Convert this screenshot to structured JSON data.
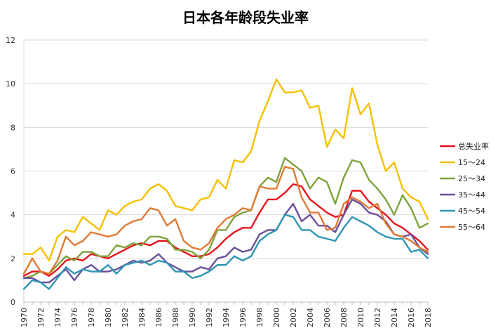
{
  "chart_data": {
    "type": "line",
    "title": "日本各年龄段失业率",
    "xlabel": "",
    "ylabel": "",
    "ylim": [
      0,
      12
    ],
    "yticks": [
      0,
      2,
      4,
      6,
      8,
      10,
      12
    ],
    "xlim": [
      1970,
      2018
    ],
    "xticks": [
      1970,
      1972,
      1974,
      1976,
      1978,
      1980,
      1982,
      1984,
      1986,
      1988,
      1990,
      1992,
      1994,
      1996,
      1998,
      2000,
      2002,
      2004,
      2006,
      2008,
      2010,
      2012,
      2014,
      2016,
      2018
    ],
    "grid": "horizontal",
    "legend_position": "right",
    "x": [
      1970,
      1971,
      1972,
      1973,
      1974,
      1975,
      1976,
      1977,
      1978,
      1979,
      1980,
      1981,
      1982,
      1983,
      1984,
      1985,
      1986,
      1987,
      1988,
      1989,
      1990,
      1991,
      1992,
      1993,
      1994,
      1995,
      1996,
      1997,
      1998,
      1999,
      2000,
      2001,
      2002,
      2003,
      2004,
      2005,
      2006,
      2007,
      2008,
      2009,
      2010,
      2011,
      2012,
      2013,
      2014,
      2015,
      2016,
      2017,
      2018
    ],
    "series": [
      {
        "name": "总失业率",
        "color": "#e8141c",
        "values": [
          1.2,
          1.4,
          1.4,
          1.2,
          1.5,
          1.9,
          2.0,
          1.9,
          2.2,
          2.1,
          2.0,
          2.2,
          2.4,
          2.6,
          2.7,
          2.6,
          2.8,
          2.8,
          2.5,
          2.3,
          2.1,
          2.1,
          2.2,
          2.5,
          2.9,
          3.2,
          3.4,
          3.4,
          4.1,
          4.7,
          4.7,
          5.0,
          5.4,
          5.3,
          4.7,
          4.4,
          4.1,
          3.9,
          4.0,
          5.1,
          5.1,
          4.6,
          4.3,
          4.0,
          3.6,
          3.4,
          3.1,
          2.8,
          2.4
        ]
      },
      {
        "name": "15～24",
        "color": "#f5c000",
        "values": [
          2.2,
          2.2,
          2.5,
          1.9,
          3.0,
          3.3,
          3.2,
          3.9,
          3.6,
          3.3,
          4.2,
          4.0,
          4.4,
          4.6,
          4.7,
          5.2,
          5.4,
          5.1,
          4.4,
          4.3,
          4.2,
          4.7,
          4.8,
          5.6,
          5.2,
          6.5,
          6.4,
          6.9,
          8.3,
          9.2,
          10.2,
          9.6,
          9.6,
          9.7,
          8.9,
          9.0,
          7.1,
          7.9,
          7.5,
          9.8,
          8.6,
          9.1,
          7.2,
          6.0,
          6.4,
          5.2,
          4.8,
          4.6,
          3.8
        ]
      },
      {
        "name": "25～34",
        "color": "#7da33a",
        "values": [
          1.1,
          1.2,
          1.4,
          1.3,
          1.7,
          2.1,
          1.9,
          2.3,
          2.3,
          2.1,
          2.1,
          2.6,
          2.5,
          2.7,
          2.6,
          3.0,
          3.0,
          2.9,
          2.4,
          2.4,
          2.3,
          2.0,
          2.4,
          3.3,
          3.3,
          3.9,
          4.1,
          4.2,
          5.3,
          5.7,
          5.5,
          6.6,
          6.3,
          6.0,
          5.2,
          5.7,
          5.5,
          4.5,
          5.7,
          6.5,
          6.4,
          5.6,
          5.2,
          4.7,
          4.0,
          4.9,
          4.3,
          3.4,
          3.6
        ]
      },
      {
        "name": "35～44",
        "color": "#6a4e9c",
        "values": [
          1.1,
          1.1,
          0.9,
          0.9,
          1.2,
          1.5,
          1.0,
          1.5,
          1.7,
          1.4,
          1.4,
          1.5,
          1.7,
          1.9,
          1.8,
          1.9,
          2.2,
          1.8,
          1.6,
          1.4,
          1.4,
          1.6,
          1.5,
          2.0,
          2.1,
          2.5,
          2.3,
          2.4,
          3.1,
          3.3,
          3.3,
          4.0,
          4.5,
          3.7,
          4.0,
          3.5,
          3.5,
          3.2,
          4.0,
          4.7,
          4.5,
          4.1,
          4.0,
          3.7,
          3.1,
          3.0,
          3.1,
          2.5,
          2.2
        ]
      },
      {
        "name": "45～54",
        "color": "#2e95b5",
        "values": [
          0.6,
          1.0,
          0.9,
          0.6,
          1.1,
          1.6,
          1.3,
          1.5,
          1.4,
          1.4,
          1.7,
          1.3,
          1.7,
          1.8,
          1.9,
          1.7,
          1.9,
          1.8,
          1.4,
          1.4,
          1.1,
          1.2,
          1.4,
          1.7,
          1.7,
          2.1,
          1.9,
          2.1,
          2.8,
          3.1,
          3.3,
          4.0,
          3.9,
          3.3,
          3.3,
          3.0,
          2.9,
          2.8,
          3.4,
          3.9,
          3.7,
          3.5,
          3.2,
          3.0,
          2.9,
          2.9,
          2.3,
          2.4,
          2.0
        ]
      },
      {
        "name": "55～64",
        "color": "#e07a33",
        "values": [
          1.3,
          2.0,
          1.4,
          1.3,
          1.9,
          3.0,
          2.6,
          2.8,
          3.2,
          3.1,
          3.0,
          3.1,
          3.5,
          3.7,
          3.8,
          4.3,
          4.2,
          3.5,
          3.8,
          2.8,
          2.5,
          2.4,
          2.7,
          3.4,
          3.8,
          4.0,
          4.3,
          4.2,
          5.3,
          5.2,
          5.2,
          6.2,
          6.1,
          4.8,
          4.1,
          4.1,
          3.3,
          3.4,
          4.5,
          4.8,
          4.6,
          4.3,
          4.5,
          3.6,
          3.1,
          3.0,
          2.8,
          2.5,
          2.3
        ]
      }
    ]
  }
}
